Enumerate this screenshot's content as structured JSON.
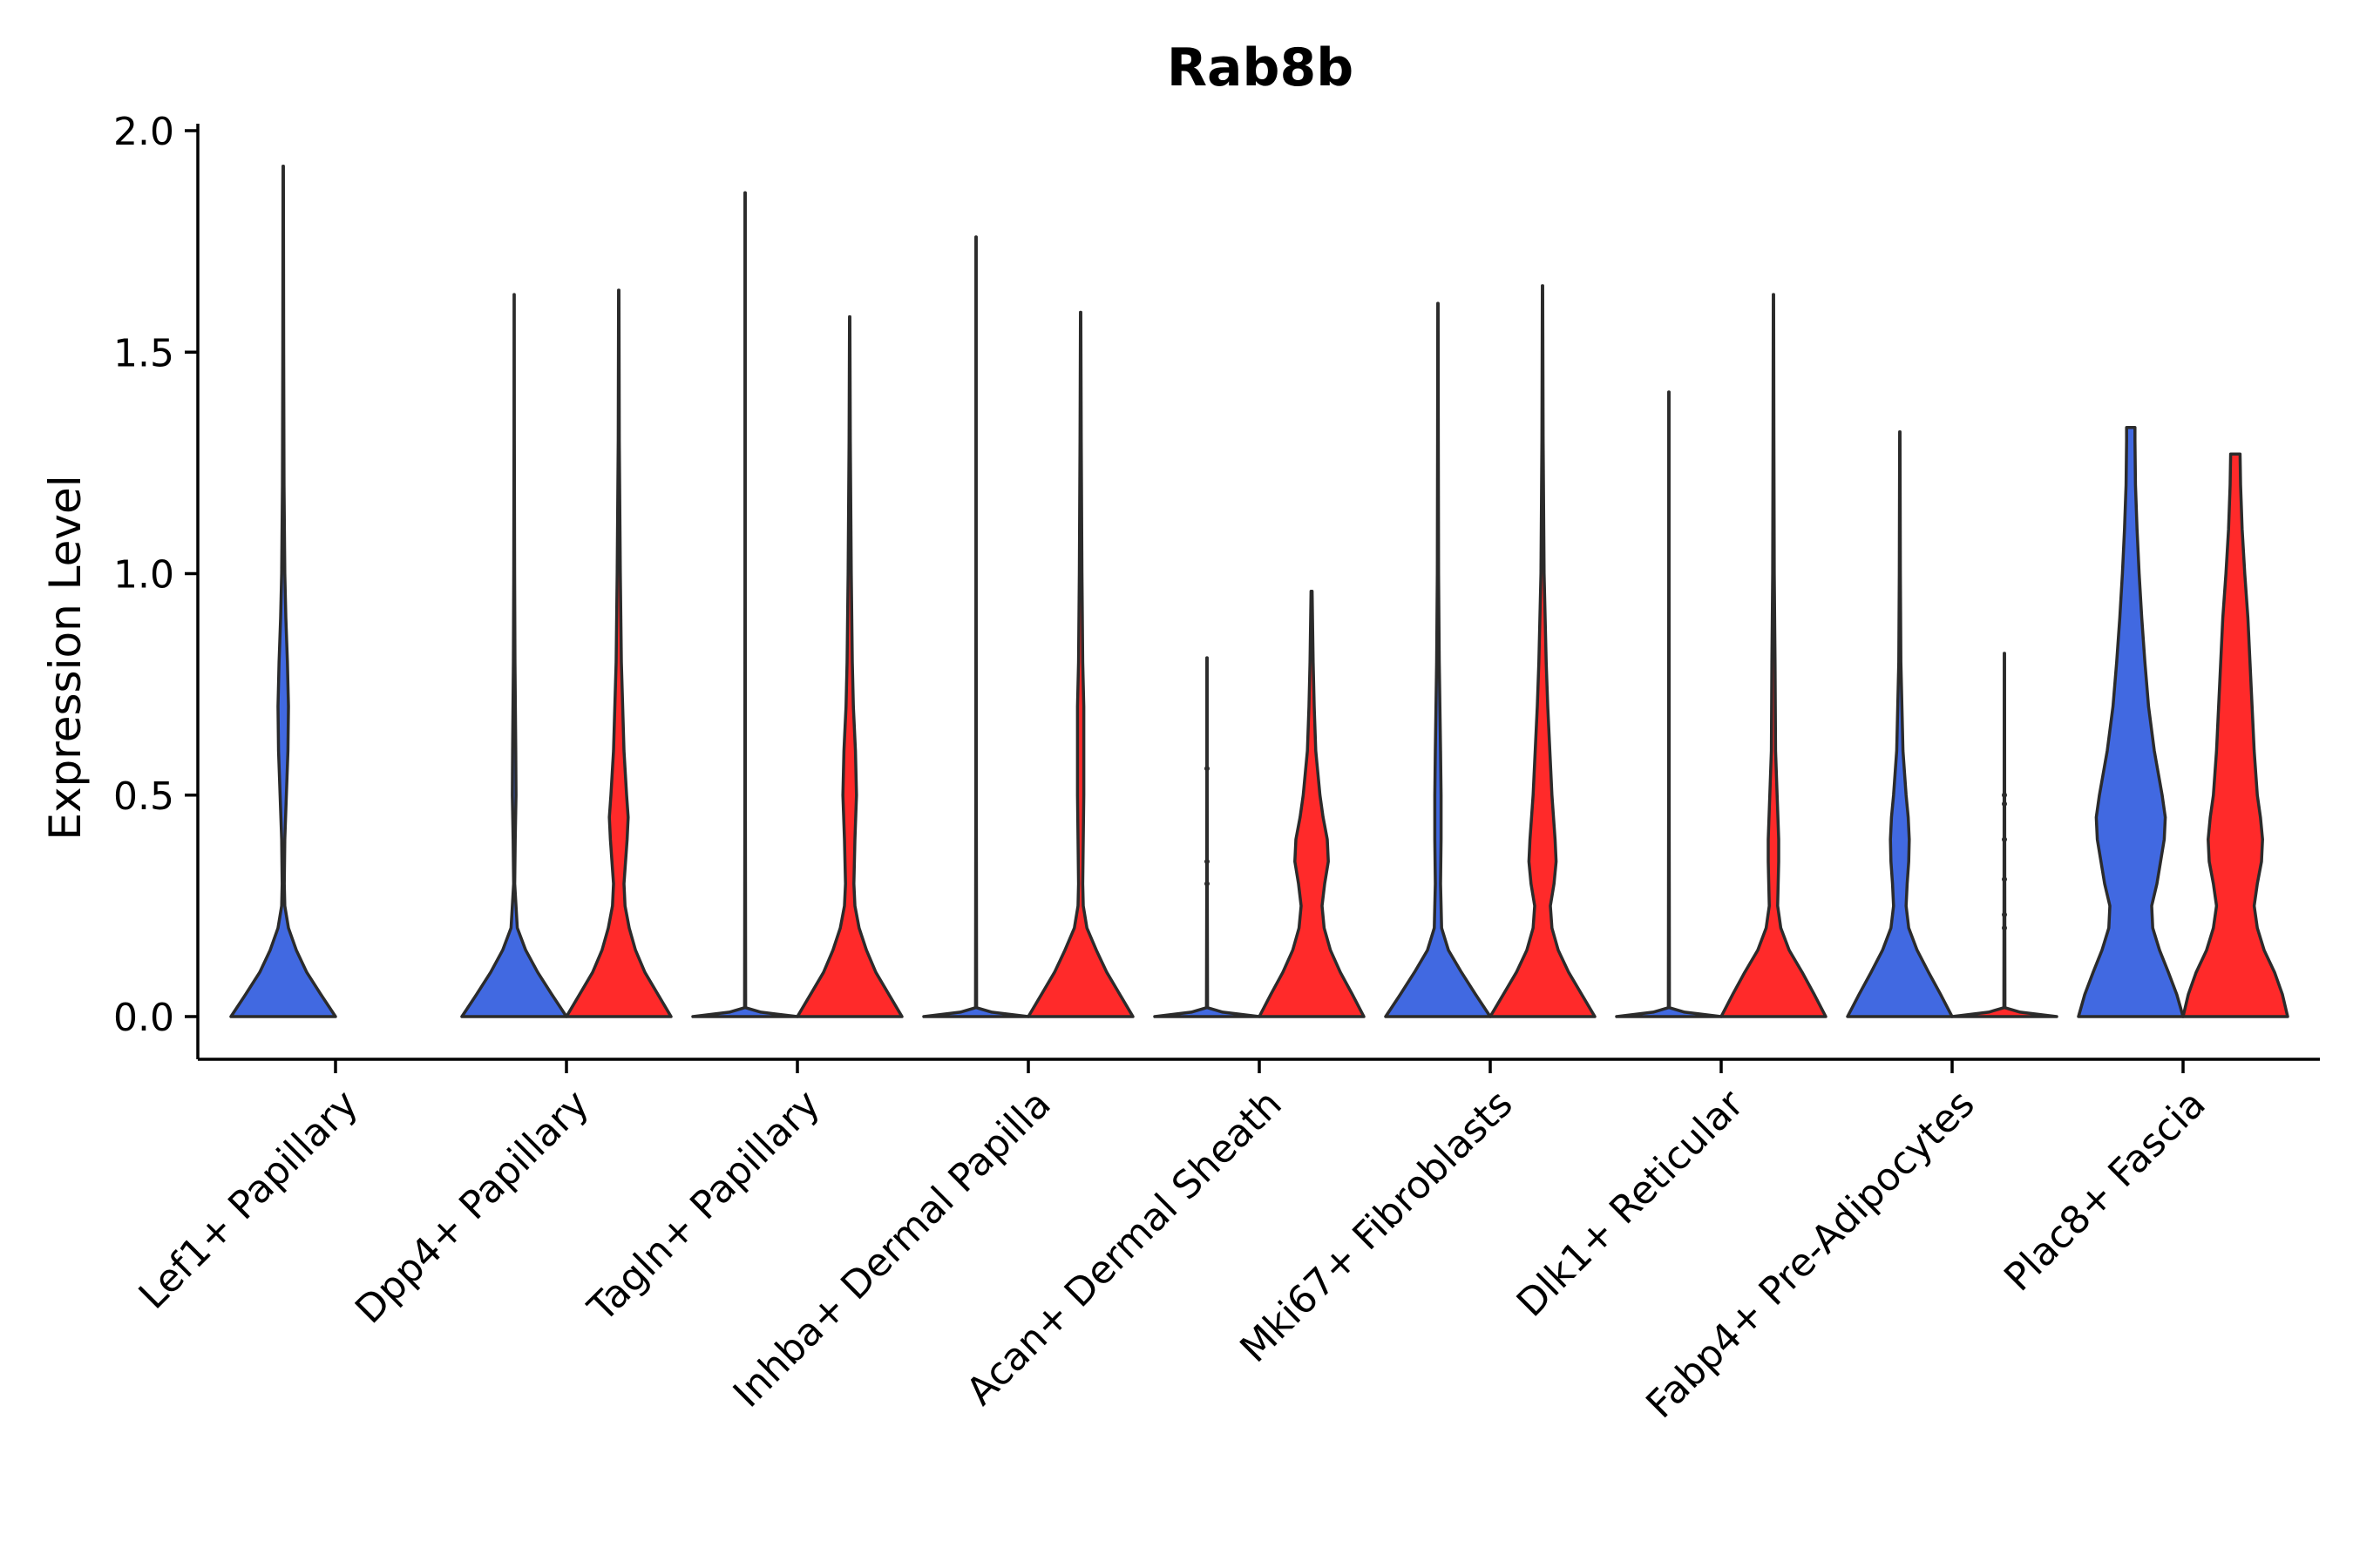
{
  "chart_data": {
    "type": "violin",
    "title": "Rab8b",
    "xlabel": "",
    "ylabel": "Expression Level",
    "ylim": [
      -0.1,
      2.0
    ],
    "yticks": [
      0.0,
      0.5,
      1.0,
      1.5,
      2.0
    ],
    "ytick_labels": [
      "0.0",
      "0.5",
      "1.0",
      "1.5",
      "2.0"
    ],
    "grid": false,
    "legend": "none",
    "colors": {
      "group_a": "#4169E1",
      "group_b": "#FF2A2A",
      "outline": "#2b2b2b"
    },
    "categories": [
      "Lef1+ Papillary",
      "Dpp4+ Papillary",
      "Tagln+ Papillary",
      "Inhba+ Dermal Papilla",
      "Acan+ Dermal Sheath",
      "Mki67+ Fibroblasts",
      "Dlk1+ Reticular",
      "Fabp4+ Pre-Adipocytes",
      "Plac8+ Fascia"
    ],
    "violins": [
      {
        "category": "Lef1+ Papillary",
        "group": "a",
        "max": 1.92,
        "profile": [
          [
            0.0,
            1.0
          ],
          [
            0.05,
            0.72
          ],
          [
            0.1,
            0.45
          ],
          [
            0.15,
            0.25
          ],
          [
            0.2,
            0.1
          ],
          [
            0.25,
            0.03
          ],
          [
            0.3,
            0.02
          ],
          [
            0.4,
            0.03
          ],
          [
            0.5,
            0.06
          ],
          [
            0.6,
            0.09
          ],
          [
            0.7,
            0.1
          ],
          [
            0.8,
            0.08
          ],
          [
            0.9,
            0.05
          ],
          [
            1.0,
            0.03
          ],
          [
            1.2,
            0.015
          ],
          [
            1.5,
            0.008
          ],
          [
            1.92,
            0.004
          ]
        ]
      },
      {
        "category": "Dpp4+ Papillary",
        "group": "a",
        "max": 1.63,
        "profile": [
          [
            0.0,
            1.0
          ],
          [
            0.05,
            0.72
          ],
          [
            0.1,
            0.45
          ],
          [
            0.15,
            0.22
          ],
          [
            0.2,
            0.06
          ],
          [
            0.3,
            0.01
          ],
          [
            0.4,
            0.02
          ],
          [
            0.5,
            0.035
          ],
          [
            0.6,
            0.03
          ],
          [
            0.8,
            0.015
          ],
          [
            1.0,
            0.008
          ],
          [
            1.3,
            0.004
          ],
          [
            1.63,
            0.002
          ]
        ]
      },
      {
        "category": "Dpp4+ Papillary",
        "group": "b",
        "max": 1.64,
        "profile": [
          [
            0.0,
            1.0
          ],
          [
            0.05,
            0.75
          ],
          [
            0.1,
            0.5
          ],
          [
            0.15,
            0.32
          ],
          [
            0.2,
            0.2
          ],
          [
            0.25,
            0.12
          ],
          [
            0.3,
            0.1
          ],
          [
            0.4,
            0.16
          ],
          [
            0.45,
            0.18
          ],
          [
            0.5,
            0.15
          ],
          [
            0.6,
            0.1
          ],
          [
            0.8,
            0.05
          ],
          [
            1.0,
            0.03
          ],
          [
            1.3,
            0.01
          ],
          [
            1.64,
            0.004
          ]
        ]
      },
      {
        "category": "Tagln+ Papillary",
        "group": "a",
        "max": 1.86,
        "profile": [
          [
            0.0,
            1.0
          ],
          [
            0.01,
            0.3
          ],
          [
            0.02,
            0.01
          ],
          [
            0.5,
            0.005
          ],
          [
            1.0,
            0.004
          ],
          [
            1.86,
            0.003
          ]
        ]
      },
      {
        "category": "Tagln+ Papillary",
        "group": "b",
        "max": 1.58,
        "profile": [
          [
            0.0,
            1.0
          ],
          [
            0.05,
            0.75
          ],
          [
            0.1,
            0.5
          ],
          [
            0.15,
            0.32
          ],
          [
            0.2,
            0.18
          ],
          [
            0.25,
            0.1
          ],
          [
            0.3,
            0.08
          ],
          [
            0.4,
            0.1
          ],
          [
            0.5,
            0.13
          ],
          [
            0.6,
            0.11
          ],
          [
            0.7,
            0.07
          ],
          [
            0.8,
            0.05
          ],
          [
            1.0,
            0.03
          ],
          [
            1.3,
            0.012
          ],
          [
            1.58,
            0.004
          ]
        ]
      },
      {
        "category": "Inhba+ Dermal Papilla",
        "group": "a",
        "max": 1.76,
        "profile": [
          [
            0.0,
            1.0
          ],
          [
            0.01,
            0.3
          ],
          [
            0.02,
            0.01
          ],
          [
            0.5,
            0.005
          ],
          [
            1.0,
            0.004
          ],
          [
            1.76,
            0.003
          ]
        ]
      },
      {
        "category": "Inhba+ Dermal Papilla",
        "group": "b",
        "max": 1.59,
        "profile": [
          [
            0.0,
            1.0
          ],
          [
            0.05,
            0.75
          ],
          [
            0.1,
            0.5
          ],
          [
            0.15,
            0.3
          ],
          [
            0.2,
            0.12
          ],
          [
            0.25,
            0.05
          ],
          [
            0.3,
            0.04
          ],
          [
            0.4,
            0.05
          ],
          [
            0.5,
            0.06
          ],
          [
            0.7,
            0.06
          ],
          [
            0.8,
            0.04
          ],
          [
            1.0,
            0.025
          ],
          [
            1.3,
            0.012
          ],
          [
            1.59,
            0.004
          ]
        ]
      },
      {
        "category": "Acan+ Dermal Sheath",
        "group": "a",
        "max": 0.81,
        "profile": [
          [
            0.0,
            1.0
          ],
          [
            0.01,
            0.3
          ],
          [
            0.02,
            0.01
          ],
          [
            0.3,
            0.005
          ],
          [
            0.56,
            0.004
          ],
          [
            0.81,
            0.003
          ]
        ],
        "dots": [
          0.56,
          0.35,
          0.3
        ]
      },
      {
        "category": "Acan+ Dermal Sheath",
        "group": "b",
        "max": 0.96,
        "profile": [
          [
            0.0,
            1.0
          ],
          [
            0.05,
            0.78
          ],
          [
            0.1,
            0.55
          ],
          [
            0.15,
            0.36
          ],
          [
            0.2,
            0.24
          ],
          [
            0.25,
            0.2
          ],
          [
            0.3,
            0.25
          ],
          [
            0.35,
            0.32
          ],
          [
            0.4,
            0.3
          ],
          [
            0.45,
            0.22
          ],
          [
            0.5,
            0.16
          ],
          [
            0.6,
            0.08
          ],
          [
            0.7,
            0.05
          ],
          [
            0.8,
            0.03
          ],
          [
            0.96,
            0.01
          ]
        ]
      },
      {
        "category": "Mki67+ Fibroblasts",
        "group": "a",
        "max": 1.61,
        "profile": [
          [
            0.0,
            1.0
          ],
          [
            0.05,
            0.72
          ],
          [
            0.1,
            0.45
          ],
          [
            0.15,
            0.2
          ],
          [
            0.2,
            0.07
          ],
          [
            0.3,
            0.05
          ],
          [
            0.4,
            0.06
          ],
          [
            0.5,
            0.06
          ],
          [
            0.6,
            0.05
          ],
          [
            0.8,
            0.025
          ],
          [
            1.0,
            0.012
          ],
          [
            1.3,
            0.006
          ],
          [
            1.61,
            0.003
          ]
        ]
      },
      {
        "category": "Mki67+ Fibroblasts",
        "group": "b",
        "max": 1.65,
        "profile": [
          [
            0.0,
            1.0
          ],
          [
            0.05,
            0.75
          ],
          [
            0.1,
            0.5
          ],
          [
            0.15,
            0.3
          ],
          [
            0.2,
            0.18
          ],
          [
            0.25,
            0.15
          ],
          [
            0.3,
            0.22
          ],
          [
            0.35,
            0.26
          ],
          [
            0.4,
            0.24
          ],
          [
            0.5,
            0.18
          ],
          [
            0.6,
            0.14
          ],
          [
            0.7,
            0.1
          ],
          [
            0.8,
            0.07
          ],
          [
            1.0,
            0.03
          ],
          [
            1.3,
            0.012
          ],
          [
            1.65,
            0.004
          ]
        ]
      },
      {
        "category": "Dlk1+ Reticular",
        "group": "a",
        "max": 1.41,
        "profile": [
          [
            0.0,
            1.0
          ],
          [
            0.01,
            0.3
          ],
          [
            0.02,
            0.01
          ],
          [
            0.5,
            0.005
          ],
          [
            1.0,
            0.004
          ],
          [
            1.41,
            0.003
          ]
        ]
      },
      {
        "category": "Dlk1+ Reticular",
        "group": "b",
        "max": 1.63,
        "profile": [
          [
            0.0,
            1.0
          ],
          [
            0.05,
            0.78
          ],
          [
            0.1,
            0.55
          ],
          [
            0.15,
            0.3
          ],
          [
            0.2,
            0.14
          ],
          [
            0.25,
            0.08
          ],
          [
            0.3,
            0.09
          ],
          [
            0.35,
            0.1
          ],
          [
            0.4,
            0.1
          ],
          [
            0.5,
            0.07
          ],
          [
            0.6,
            0.04
          ],
          [
            0.8,
            0.03
          ],
          [
            1.0,
            0.015
          ],
          [
            1.3,
            0.008
          ],
          [
            1.63,
            0.003
          ]
        ]
      },
      {
        "category": "Fabp4+ Pre-Adipocytes",
        "group": "a",
        "max": 1.32,
        "profile": [
          [
            0.0,
            1.0
          ],
          [
            0.05,
            0.78
          ],
          [
            0.1,
            0.55
          ],
          [
            0.15,
            0.33
          ],
          [
            0.2,
            0.17
          ],
          [
            0.25,
            0.12
          ],
          [
            0.3,
            0.14
          ],
          [
            0.35,
            0.17
          ],
          [
            0.4,
            0.18
          ],
          [
            0.45,
            0.16
          ],
          [
            0.5,
            0.12
          ],
          [
            0.6,
            0.06
          ],
          [
            0.8,
            0.02
          ],
          [
            1.0,
            0.01
          ],
          [
            1.32,
            0.004
          ]
        ]
      },
      {
        "category": "Fabp4+ Pre-Adipocytes",
        "group": "b",
        "max": 0.82,
        "profile": [
          [
            0.0,
            1.0
          ],
          [
            0.01,
            0.3
          ],
          [
            0.02,
            0.01
          ],
          [
            0.3,
            0.006
          ],
          [
            0.5,
            0.005
          ],
          [
            0.82,
            0.004
          ]
        ],
        "dots": [
          0.5,
          0.48,
          0.4,
          0.31,
          0.23,
          0.2
        ]
      },
      {
        "category": "Plac8+ Fascia",
        "group": "a",
        "max": 1.33,
        "profile": [
          [
            0.0,
            1.0
          ],
          [
            0.05,
            0.88
          ],
          [
            0.1,
            0.72
          ],
          [
            0.15,
            0.55
          ],
          [
            0.2,
            0.42
          ],
          [
            0.25,
            0.4
          ],
          [
            0.3,
            0.5
          ],
          [
            0.4,
            0.64
          ],
          [
            0.45,
            0.66
          ],
          [
            0.5,
            0.6
          ],
          [
            0.6,
            0.45
          ],
          [
            0.7,
            0.34
          ],
          [
            0.8,
            0.27
          ],
          [
            0.9,
            0.21
          ],
          [
            1.0,
            0.16
          ],
          [
            1.1,
            0.12
          ],
          [
            1.2,
            0.09
          ],
          [
            1.3,
            0.08
          ],
          [
            1.33,
            0.08
          ]
        ]
      },
      {
        "category": "Plac8+ Fascia",
        "group": "b",
        "max": 1.27,
        "profile": [
          [
            0.0,
            1.0
          ],
          [
            0.05,
            0.9
          ],
          [
            0.1,
            0.75
          ],
          [
            0.15,
            0.55
          ],
          [
            0.2,
            0.42
          ],
          [
            0.25,
            0.36
          ],
          [
            0.3,
            0.42
          ],
          [
            0.35,
            0.5
          ],
          [
            0.4,
            0.52
          ],
          [
            0.45,
            0.48
          ],
          [
            0.5,
            0.42
          ],
          [
            0.6,
            0.36
          ],
          [
            0.7,
            0.32
          ],
          [
            0.8,
            0.28
          ],
          [
            0.9,
            0.24
          ],
          [
            1.0,
            0.18
          ],
          [
            1.1,
            0.13
          ],
          [
            1.2,
            0.1
          ],
          [
            1.27,
            0.09
          ]
        ]
      }
    ]
  }
}
